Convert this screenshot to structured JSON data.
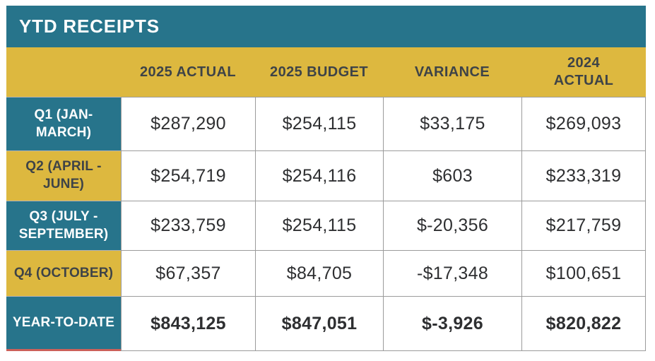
{
  "title": "YTD RECEIPTS",
  "columns": {
    "c1": "2025 ACTUAL",
    "c2": "2025 BUDGET",
    "c3": "VARIANCE",
    "c4": "2024\nACTUAL"
  },
  "rows": [
    {
      "label": "Q1 (JAN-MARCH)",
      "values": [
        "$287,290",
        "$254,115",
        "$33,175",
        "$269,093"
      ]
    },
    {
      "label": "Q2 (APRIL - JUNE)",
      "values": [
        "$254,719",
        "$254,116",
        "$603",
        "$233,319"
      ]
    },
    {
      "label": "Q3 (JULY - SEPTEMBER)",
      "values": [
        "$233,759",
        "$254,115",
        "$-20,356",
        "$217,759"
      ]
    },
    {
      "label": "Q4 (OCTOBER)",
      "values": [
        "$67,357",
        "$84,705",
        "-$17,348",
        "$100,651"
      ]
    },
    {
      "label": "YEAR-TO-DATE",
      "values": [
        "$843,125",
        "$847,051",
        "$-3,926",
        "$820,822"
      ]
    }
  ],
  "colors": {
    "teal": "#27748B",
    "gold": "#DDB83F",
    "header_text": "#3E4347",
    "value_text": "#2E2F31",
    "grid_border": "#9B9B9B",
    "red_underline": "#CC6059",
    "title_text": "#FFFFFF"
  },
  "chart_data": {
    "type": "table",
    "title": "YTD RECEIPTS",
    "columns": [
      "",
      "2025 ACTUAL",
      "2025 BUDGET",
      "VARIANCE",
      "2024 ACTUAL"
    ],
    "rows": [
      [
        "Q1 (JAN-MARCH)",
        "$287,290",
        "$254,115",
        "$33,175",
        "$269,093"
      ],
      [
        "Q2 (APRIL - JUNE)",
        "$254,719",
        "$254,116",
        "$603",
        "$233,319"
      ],
      [
        "Q3 (JULY - SEPTEMBER)",
        "$233,759",
        "$254,115",
        "$-20,356",
        "$217,759"
      ],
      [
        "Q4 (OCTOBER)",
        "$67,357",
        "$84,705",
        "-$17,348",
        "$100,651"
      ],
      [
        "YEAR-TO-DATE",
        "$843,125",
        "$847,051",
        "$-3,926",
        "$820,822"
      ]
    ],
    "numeric_values": {
      "actual_2025": [
        287290,
        254719,
        233759,
        67357,
        843125
      ],
      "budget_2025": [
        254115,
        254116,
        254115,
        84705,
        847051
      ],
      "variance": [
        33175,
        603,
        -20356,
        -17348,
        -3926
      ],
      "actual_2024": [
        269093,
        233319,
        217759,
        100651,
        820822
      ]
    }
  }
}
